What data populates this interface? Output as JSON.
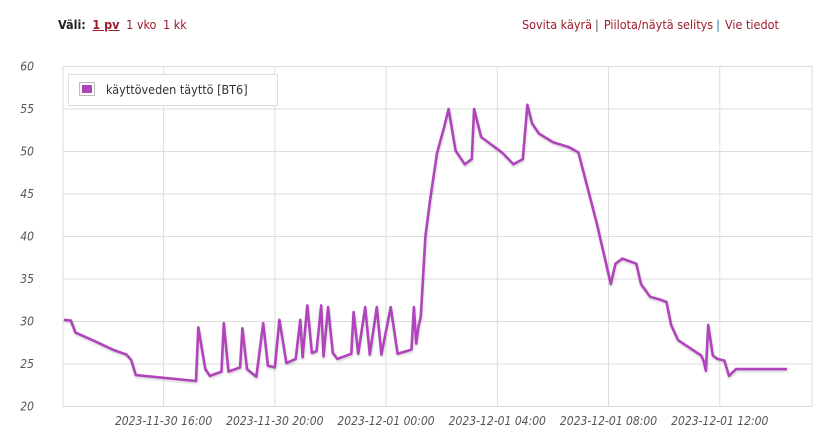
{
  "toolbar": {
    "range_label": "Väli:",
    "range_options": [
      "1 pv",
      "1 vko",
      "1 kk"
    ],
    "active_range": "1 pv",
    "links": [
      "Sovita käyrä",
      "Piilota/näytä selitys",
      "Vie tiedot"
    ],
    "separator": "|"
  },
  "colors": {
    "series": "#b044bb",
    "link": "#9b1c2c",
    "grid": "#dddddd"
  },
  "chart_data": {
    "type": "line",
    "title": "",
    "xlabel": "",
    "ylabel": "",
    "ylim": [
      20,
      60
    ],
    "yticks": [
      "20",
      "25",
      "30",
      "35",
      "40",
      "45",
      "50",
      "55",
      "60"
    ],
    "xlim": [
      "2023-11-30 12:23",
      "2023-12-01 15:19"
    ],
    "xticks": [
      {
        "at": "2023-11-30 16:00",
        "label": "2023-11-30 16:00"
      },
      {
        "at": "2023-11-30 20:00",
        "label": "2023-11-30 20:00"
      },
      {
        "at": "2023-12-01 00:00",
        "label": "2023-12-01 00:00"
      },
      {
        "at": "2023-12-01 04:00",
        "label": "2023-12-01 04:00"
      },
      {
        "at": "2023-12-01 08:00",
        "label": "2023-12-01 08:00"
      },
      {
        "at": "2023-12-01 12:00",
        "label": "2023-12-01 12:00"
      }
    ],
    "grid": true,
    "legend_position": "top-left",
    "series": [
      {
        "name": "käyttöveden täyttö [BT6]",
        "color": "#b044bb",
        "points": [
          [
            "2023-11-30 12:25",
            30.2
          ],
          [
            "2023-11-30 12:40",
            30.1
          ],
          [
            "2023-11-30 12:50",
            28.7
          ],
          [
            "2023-11-30 13:35",
            27.6
          ],
          [
            "2023-11-30 14:10",
            26.7
          ],
          [
            "2023-11-30 14:40",
            26.1
          ],
          [
            "2023-11-30 14:50",
            25.5
          ],
          [
            "2023-11-30 15:00",
            23.7
          ],
          [
            "2023-11-30 17:10",
            23.0
          ],
          [
            "2023-11-30 17:15",
            29.3
          ],
          [
            "2023-11-30 17:30",
            24.4
          ],
          [
            "2023-11-30 17:40",
            23.6
          ],
          [
            "2023-11-30 18:05",
            24.1
          ],
          [
            "2023-11-30 18:10",
            29.8
          ],
          [
            "2023-11-30 18:20",
            24.1
          ],
          [
            "2023-11-30 18:45",
            24.6
          ],
          [
            "2023-11-30 18:50",
            29.2
          ],
          [
            "2023-11-30 19:00",
            24.4
          ],
          [
            "2023-11-30 19:20",
            23.5
          ],
          [
            "2023-11-30 19:35",
            29.8
          ],
          [
            "2023-11-30 19:45",
            24.8
          ],
          [
            "2023-11-30 20:00",
            24.6
          ],
          [
            "2023-11-30 20:10",
            30.2
          ],
          [
            "2023-11-30 20:25",
            25.1
          ],
          [
            "2023-11-30 20:45",
            25.6
          ],
          [
            "2023-11-30 20:55",
            30.2
          ],
          [
            "2023-11-30 21:00",
            25.8
          ],
          [
            "2023-11-30 21:10",
            31.9
          ],
          [
            "2023-11-30 21:20",
            26.3
          ],
          [
            "2023-11-30 21:30",
            26.5
          ],
          [
            "2023-11-30 21:40",
            31.9
          ],
          [
            "2023-11-30 21:45",
            25.9
          ],
          [
            "2023-11-30 21:55",
            31.7
          ],
          [
            "2023-11-30 22:05",
            26.3
          ],
          [
            "2023-11-30 22:15",
            25.6
          ],
          [
            "2023-11-30 22:45",
            26.2
          ],
          [
            "2023-11-30 22:50",
            31.1
          ],
          [
            "2023-11-30 23:00",
            26.2
          ],
          [
            "2023-11-30 23:15",
            31.7
          ],
          [
            "2023-11-30 23:25",
            26.1
          ],
          [
            "2023-11-30 23:40",
            31.7
          ],
          [
            "2023-11-30 23:50",
            26.1
          ],
          [
            "2023-12-01 00:10",
            31.7
          ],
          [
            "2023-12-01 00:25",
            26.2
          ],
          [
            "2023-12-01 00:55",
            26.7
          ],
          [
            "2023-12-01 01:00",
            31.7
          ],
          [
            "2023-12-01 01:05",
            27.4
          ],
          [
            "2023-12-01 01:10",
            29.4
          ],
          [
            "2023-12-01 01:15",
            30.6
          ],
          [
            "2023-12-01 01:25",
            40.0
          ],
          [
            "2023-12-01 01:35",
            44.3
          ],
          [
            "2023-12-01 01:50",
            49.8
          ],
          [
            "2023-12-01 02:05",
            52.8
          ],
          [
            "2023-12-01 02:15",
            55.0
          ],
          [
            "2023-12-01 02:30",
            50.1
          ],
          [
            "2023-12-01 02:50",
            48.5
          ],
          [
            "2023-12-01 03:05",
            49.1
          ],
          [
            "2023-12-01 03:10",
            55.0
          ],
          [
            "2023-12-01 03:25",
            51.7
          ],
          [
            "2023-12-01 04:10",
            49.9
          ],
          [
            "2023-12-01 04:35",
            48.5
          ],
          [
            "2023-12-01 04:55",
            49.1
          ],
          [
            "2023-12-01 05:05",
            55.5
          ],
          [
            "2023-12-01 05:15",
            53.3
          ],
          [
            "2023-12-01 05:30",
            52.1
          ],
          [
            "2023-12-01 06:00",
            51.1
          ],
          [
            "2023-12-01 06:35",
            50.5
          ],
          [
            "2023-12-01 06:55",
            49.9
          ],
          [
            "2023-12-01 07:05",
            47.8
          ],
          [
            "2023-12-01 07:35",
            41.5
          ],
          [
            "2023-12-01 08:05",
            34.4
          ],
          [
            "2023-12-01 08:15",
            36.8
          ],
          [
            "2023-12-01 08:30",
            37.4
          ],
          [
            "2023-12-01 09:00",
            36.8
          ],
          [
            "2023-12-01 09:10",
            34.4
          ],
          [
            "2023-12-01 09:30",
            32.9
          ],
          [
            "2023-12-01 09:50",
            32.6
          ],
          [
            "2023-12-01 10:05",
            32.3
          ],
          [
            "2023-12-01 10:15",
            29.6
          ],
          [
            "2023-12-01 10:30",
            27.8
          ],
          [
            "2023-12-01 11:20",
            26.0
          ],
          [
            "2023-12-01 11:25",
            25.4
          ],
          [
            "2023-12-01 11:30",
            24.2
          ],
          [
            "2023-12-01 11:35",
            29.6
          ],
          [
            "2023-12-01 11:45",
            26.0
          ],
          [
            "2023-12-01 11:55",
            25.6
          ],
          [
            "2023-12-01 12:10",
            25.4
          ],
          [
            "2023-12-01 12:20",
            23.6
          ],
          [
            "2023-12-01 12:35",
            24.4
          ],
          [
            "2023-12-01 14:25",
            24.4
          ]
        ]
      }
    ]
  }
}
